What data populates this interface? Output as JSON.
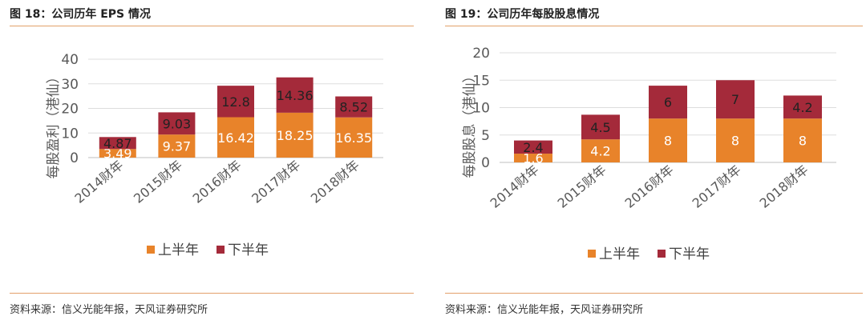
{
  "colors": {
    "first_half": "#E8832A",
    "second_half": "#A42A3A",
    "rule": "#E3A06A"
  },
  "chart_data": [
    {
      "type": "bar",
      "stacked": true,
      "title": "图 18：公司历年 EPS 情况",
      "ylabel": "每股盈利（港仙）",
      "xlabel": "",
      "ylim": [
        0,
        40
      ],
      "yticks": [
        0,
        10,
        20,
        30,
        40
      ],
      "categories": [
        "2014财年",
        "2015财年",
        "2016财年",
        "2017财年",
        "2018财年"
      ],
      "series": [
        {
          "name": "上半年",
          "values": [
            3.49,
            9.37,
            16.42,
            18.25,
            16.35
          ]
        },
        {
          "name": "下半年",
          "values": [
            4.87,
            9.03,
            12.8,
            14.36,
            8.52
          ]
        }
      ],
      "data_labels": [
        [
          "3.49",
          "9.37",
          "16.42",
          "18.25",
          "16.35"
        ],
        [
          "4.87",
          "9.03",
          "12.8",
          "14.36",
          "8.52"
        ]
      ],
      "legend_position": "bottom",
      "grid": true,
      "source": "资料来源：信义光能年报，天风证券研究所"
    },
    {
      "type": "bar",
      "stacked": true,
      "title": "图 19：公司历年每股股息情况",
      "ylabel": "每股股息（港仙）",
      "xlabel": "",
      "ylim": [
        0,
        20
      ],
      "yticks": [
        0,
        5,
        10,
        15,
        20
      ],
      "categories": [
        "2014财年",
        "2015财年",
        "2016财年",
        "2017财年",
        "2018财年"
      ],
      "series": [
        {
          "name": "上半年",
          "values": [
            1.6,
            4.2,
            8,
            8,
            8
          ]
        },
        {
          "name": "下半年",
          "values": [
            2.4,
            4.5,
            6,
            7,
            4.2
          ]
        }
      ],
      "data_labels": [
        [
          "1.6",
          "4.2",
          "8",
          "8",
          "8"
        ],
        [
          "2.4",
          "4.5",
          "6",
          "7",
          "4.2"
        ]
      ],
      "legend_position": "bottom",
      "grid": true,
      "source": "资料来源：信义光能年报，天风证券研究所"
    }
  ]
}
